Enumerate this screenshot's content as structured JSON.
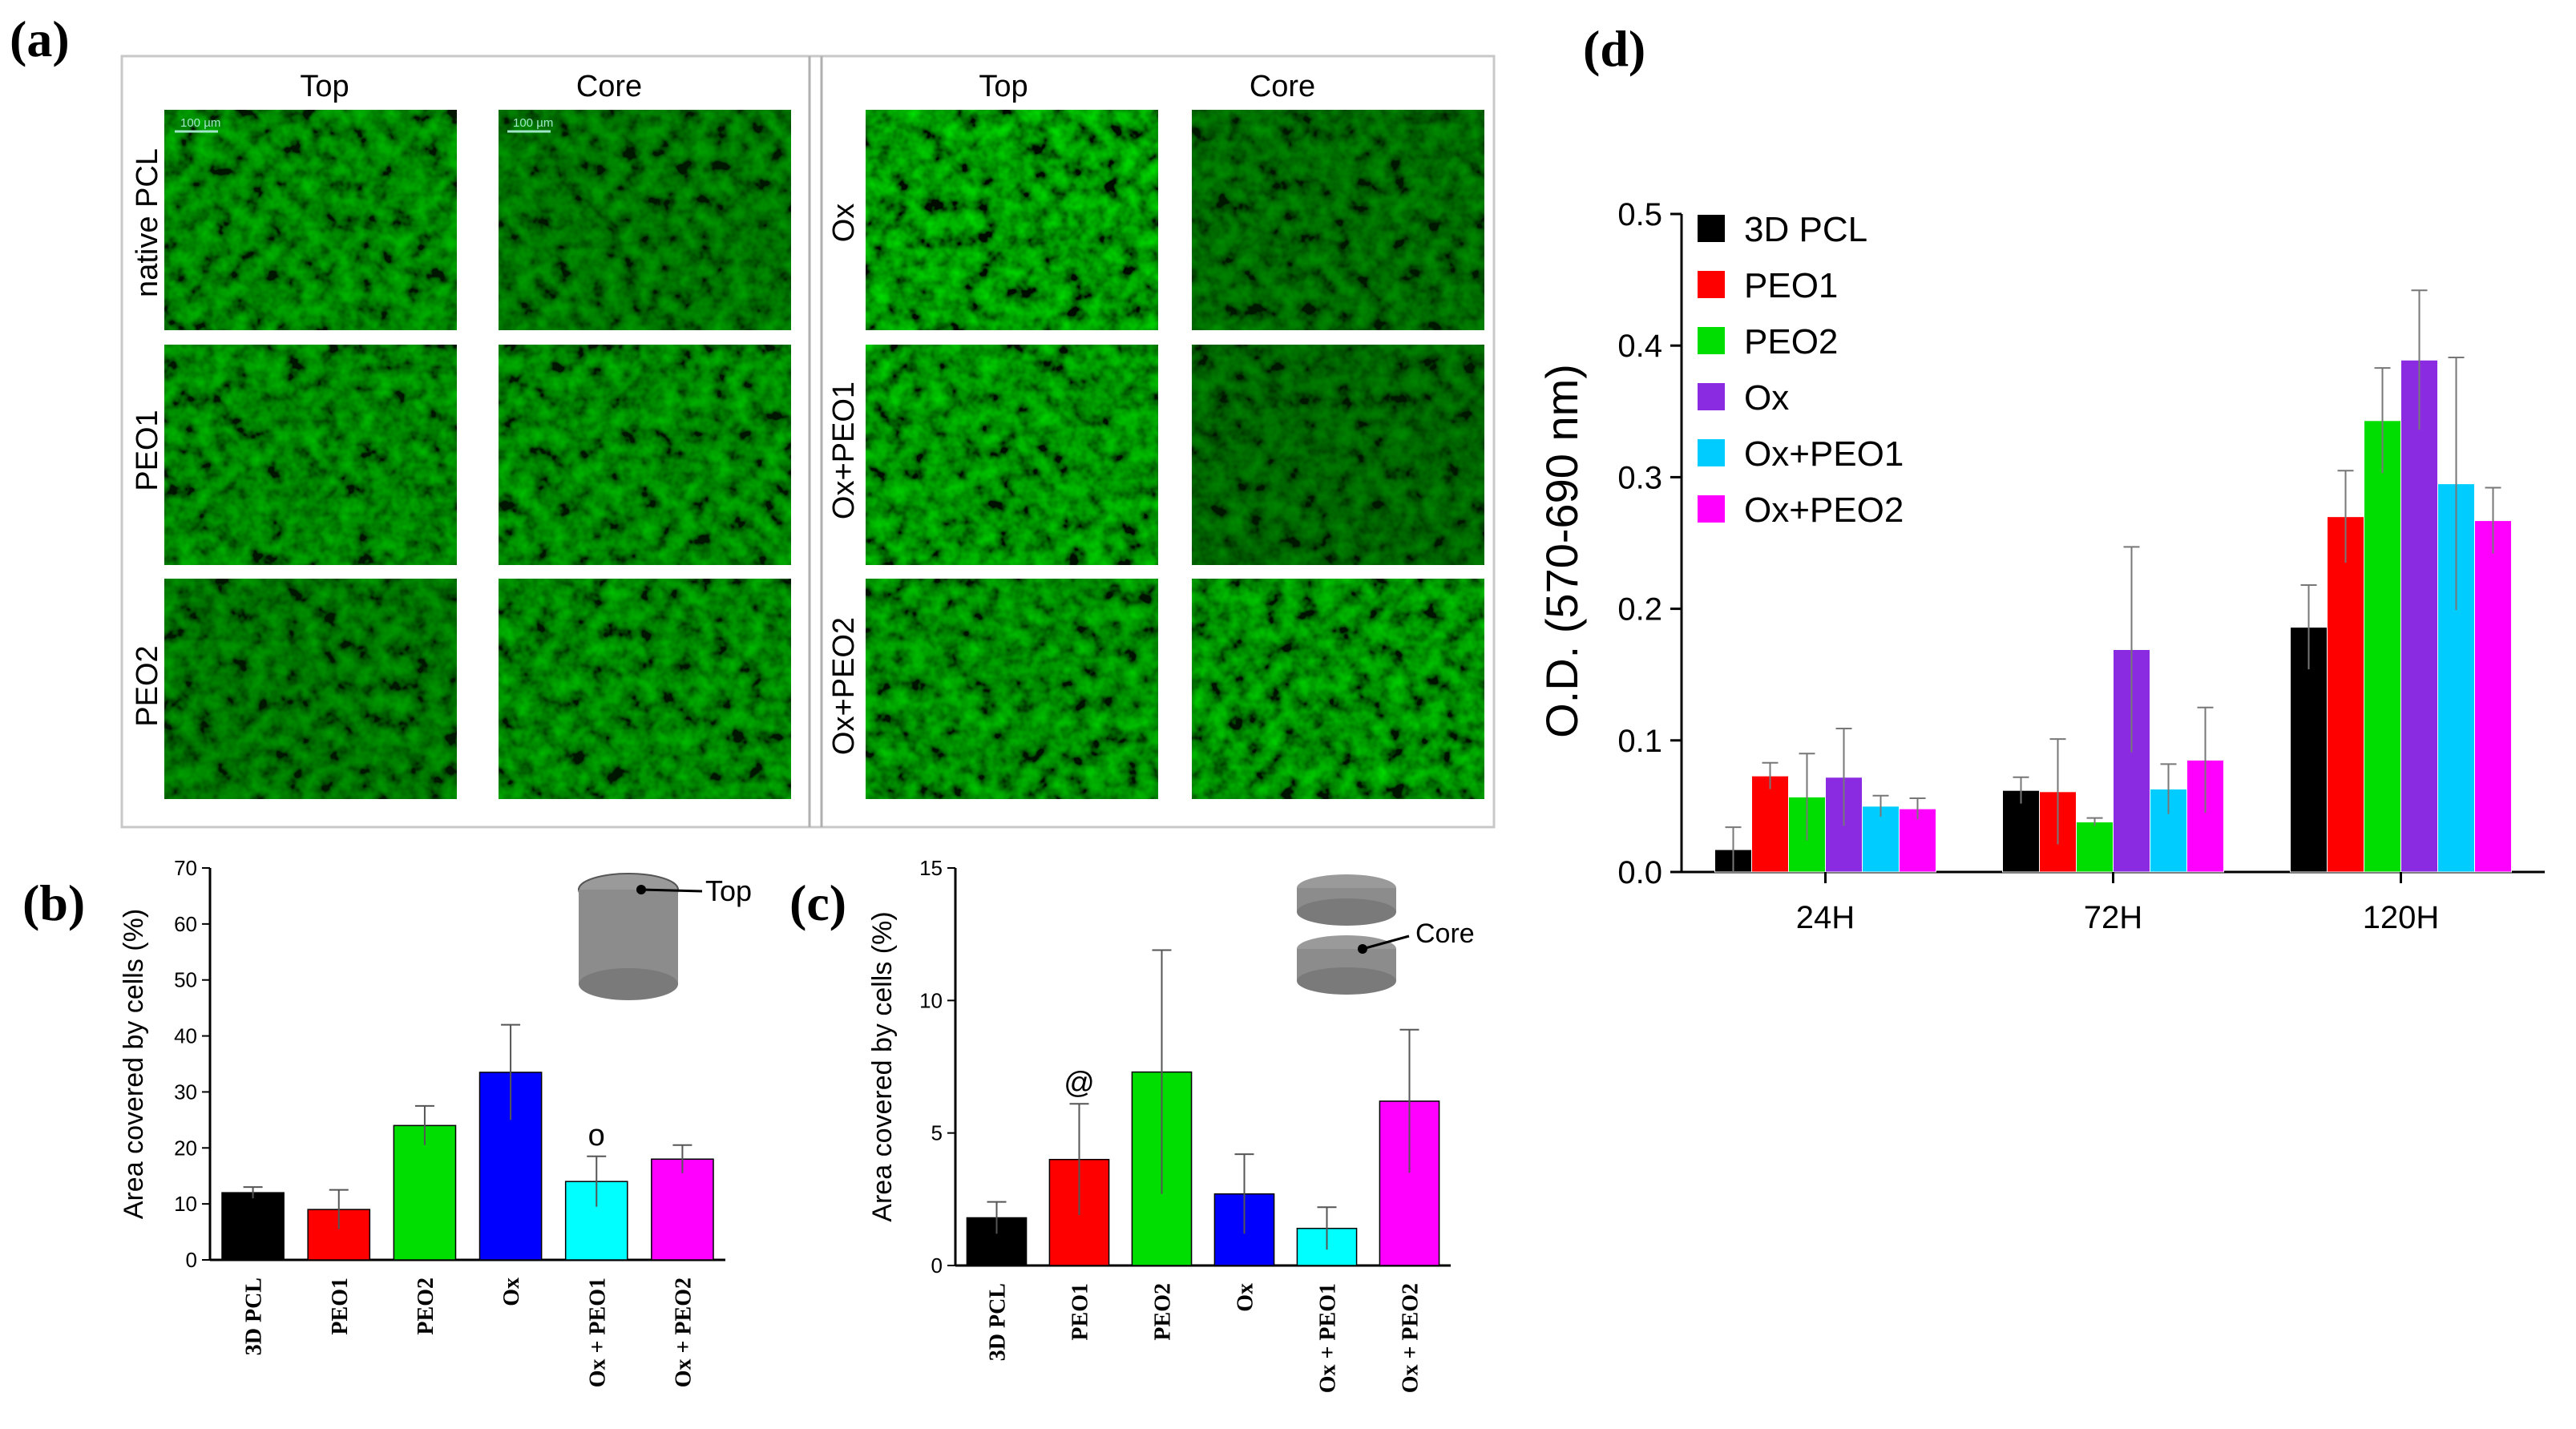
{
  "panels": {
    "a": "(a)",
    "b": "(b)",
    "c": "(c)",
    "d": "(d)"
  },
  "micrographs": {
    "col_headers": [
      "Top",
      "Core",
      "Top",
      "Core"
    ],
    "row_labels_left": [
      "native PCL",
      "PEO1",
      "PEO2"
    ],
    "row_labels_right": [
      "Ox",
      "Ox+PEO1",
      "Ox+PEO2"
    ],
    "scale_bar_label": "100 µm",
    "cell_brightness": [
      [
        0.55,
        0.35,
        0.85,
        0.25
      ],
      [
        0.55,
        0.55,
        0.75,
        0.2
      ],
      [
        0.35,
        0.55,
        0.65,
        0.7
      ]
    ]
  },
  "colors": {
    "3D PCL": "#000000",
    "PEO1": "#ff0000",
    "PEO2": "#00dd00",
    "Ox_b": "#0000ff",
    "Ox_d": "#8a2be2",
    "Ox+PEO1": "#00ffff",
    "Ox+PEO2": "#ff00ff",
    "Ox+PEO1_d": "#00ccff"
  },
  "chart_data": [
    {
      "id": "b",
      "type": "bar",
      "title": "",
      "inset_label": "Top",
      "categories": [
        "3D PCL",
        "PEO1",
        "PEO2",
        "Ox",
        "Ox + PEO1",
        "Ox + PEO2"
      ],
      "values": [
        12,
        9,
        24,
        33.5,
        14,
        18
      ],
      "errors": [
        1,
        3.5,
        3.5,
        8.5,
        4.5,
        2.5
      ],
      "annotations": [
        {
          "category": "Ox + PEO1",
          "text": "o"
        }
      ],
      "ylabel": "Area covered by cells (%)",
      "xlabel": "",
      "ylim": [
        0,
        70
      ],
      "yticks": [
        0,
        10,
        20,
        30,
        40,
        50,
        60,
        70
      ]
    },
    {
      "id": "c",
      "type": "bar",
      "title": "",
      "inset_label": "Core",
      "categories": [
        "3D PCL",
        "PEO1",
        "PEO2",
        "Ox",
        "Ox + PEO1",
        "Ox + PEO2"
      ],
      "values": [
        1.8,
        4.0,
        7.3,
        2.7,
        1.4,
        6.2
      ],
      "errors": [
        0.6,
        2.1,
        4.6,
        1.5,
        0.8,
        2.7
      ],
      "annotations": [
        {
          "category": "PEO1",
          "text": "@"
        }
      ],
      "ylabel": "Area covered by cells (%)",
      "xlabel": "",
      "ylim": [
        0,
        15
      ],
      "yticks": [
        0,
        5,
        10,
        15
      ]
    },
    {
      "id": "d",
      "type": "bar",
      "title": "",
      "categories": [
        "24H",
        "72H",
        "120H"
      ],
      "series": [
        {
          "name": "3D PCL",
          "values": [
            0.017,
            0.062,
            0.186
          ],
          "errors": [
            0.017,
            0.01,
            0.032
          ]
        },
        {
          "name": "PEO1",
          "values": [
            0.073,
            0.061,
            0.27
          ],
          "errors": [
            0.01,
            0.04,
            0.035
          ]
        },
        {
          "name": "PEO2",
          "values": [
            0.057,
            0.038,
            0.343
          ],
          "errors": [
            0.033,
            0.003,
            0.04
          ]
        },
        {
          "name": "Ox",
          "values": [
            0.072,
            0.169,
            0.389
          ],
          "errors": [
            0.037,
            0.078,
            0.053
          ]
        },
        {
          "name": "Ox+PEO1",
          "values": [
            0.05,
            0.063,
            0.295
          ],
          "errors": [
            0.008,
            0.019,
            0.096
          ]
        },
        {
          "name": "Ox+PEO2",
          "values": [
            0.048,
            0.085,
            0.267
          ],
          "errors": [
            0.008,
            0.04,
            0.025
          ]
        }
      ],
      "ylabel": "O.D. (570-690 nm)",
      "xlabel": "",
      "ylim": [
        0,
        0.5
      ],
      "yticks": [
        "0.0",
        "0.1",
        "0.2",
        "0.3",
        "0.4",
        "0.5"
      ],
      "legend_position": "top-left"
    }
  ]
}
